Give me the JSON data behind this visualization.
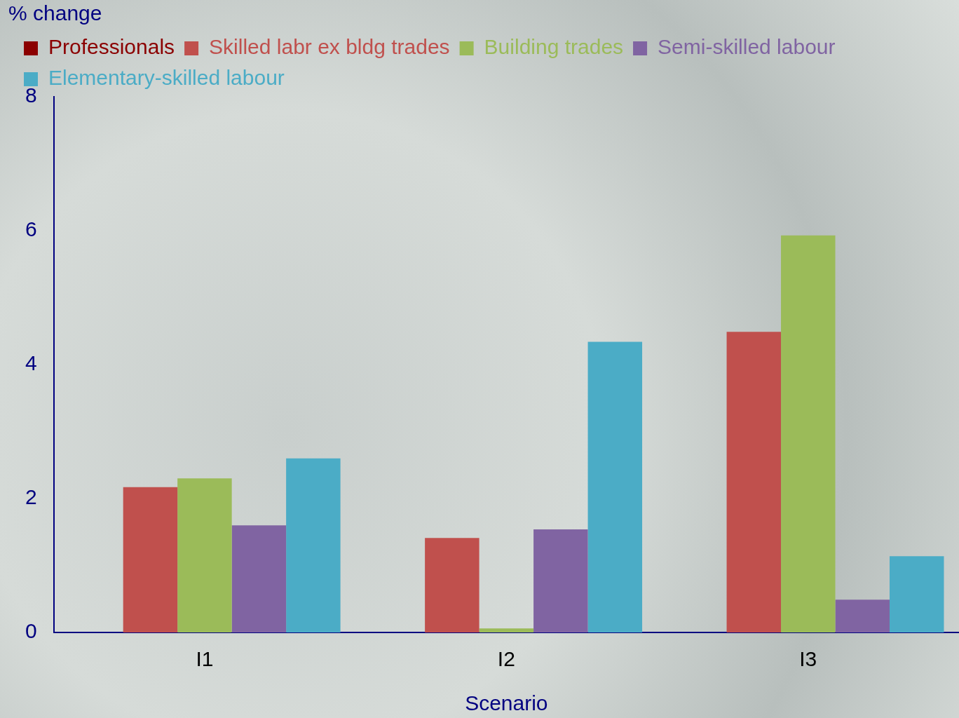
{
  "chart_data": {
    "type": "bar",
    "ylabel": "% change",
    "xlabel": "Scenario",
    "categories": [
      "I1",
      "I2",
      "I3"
    ],
    "series": [
      {
        "name": "Professionals",
        "color": "#8b0000",
        "values": [
          0,
          0,
          0
        ]
      },
      {
        "name": "Skilled labr ex bldg trades",
        "color": "#c0504d",
        "values": [
          2.17,
          1.41,
          4.49
        ]
      },
      {
        "name": "Building trades",
        "color": "#9bbb59",
        "values": [
          2.3,
          0.06,
          5.93
        ]
      },
      {
        "name": "Semi-skilled labour",
        "color": "#8064a2",
        "values": [
          1.6,
          1.54,
          0.49
        ]
      },
      {
        "name": "Elementary-skilled labour",
        "color": "#4bacc6",
        "values": [
          2.6,
          4.34,
          1.14
        ]
      }
    ],
    "ylim": [
      0,
      8
    ],
    "yticks": [
      0,
      2,
      4,
      6,
      8
    ],
    "grid": false,
    "legend": "top left"
  }
}
